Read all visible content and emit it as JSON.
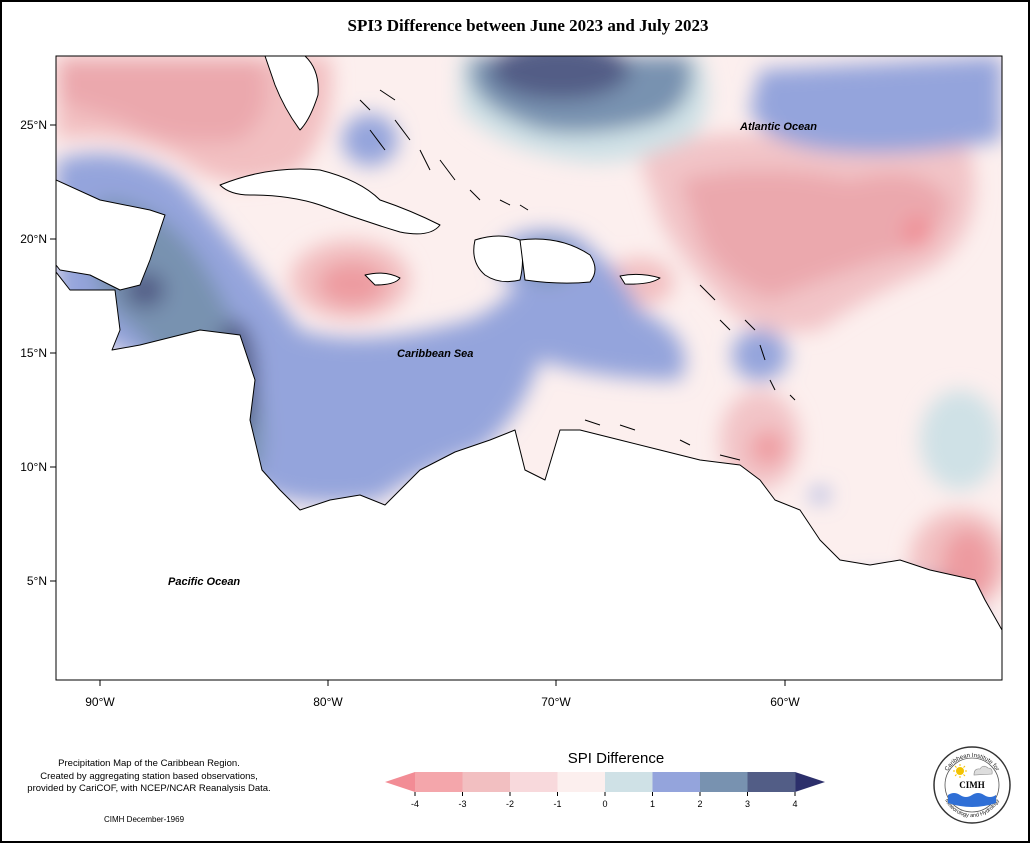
{
  "title": "SPI3 Difference between June 2023 and July 2023",
  "map": {
    "y_axis": [
      {
        "label": "25°N",
        "lat": 25
      },
      {
        "label": "20°N",
        "lat": 20
      },
      {
        "label": "15°N",
        "lat": 15
      },
      {
        "label": "10°N",
        "lat": 10
      },
      {
        "label": "5°N",
        "lat": 5
      }
    ],
    "x_axis": [
      {
        "label": "90°W",
        "lon": -90
      },
      {
        "label": "80°W",
        "lon": -80
      },
      {
        "label": "70°W",
        "lon": -70
      },
      {
        "label": "60°W",
        "lon": -60
      }
    ],
    "ocean_labels": {
      "atlantic": "Atlantic Ocean",
      "caribbean": "Caribbean Sea",
      "pacific": "Pacific Ocean"
    }
  },
  "legend": {
    "title": "SPI Difference",
    "ticks": [
      "-4",
      "-3",
      "-2",
      "-1",
      "0",
      "1",
      "2",
      "3",
      "4"
    ],
    "colors": [
      "#f4a6ab",
      "#f2bfc1",
      "#f8d9dc",
      "#fcefee",
      "#cfe1e6",
      "#94a4dc",
      "#7892b0",
      "#525d86"
    ],
    "arrow_low": "#f28c95",
    "arrow_high": "#2c2f6b"
  },
  "note": {
    "line1": "Precipitation Map of the Caribbean Region.",
    "line2": "Created by aggregating station based observations,",
    "line3": "provided by CariCOF, with NCEP/NCAR Reanalysis Data.",
    "credit": "CIMH December-1969"
  },
  "logo": {
    "top_text": "Caribbean Institute for",
    "bottom_text": "Meteorology and Hydrology",
    "abbrev": "CIMH"
  }
}
